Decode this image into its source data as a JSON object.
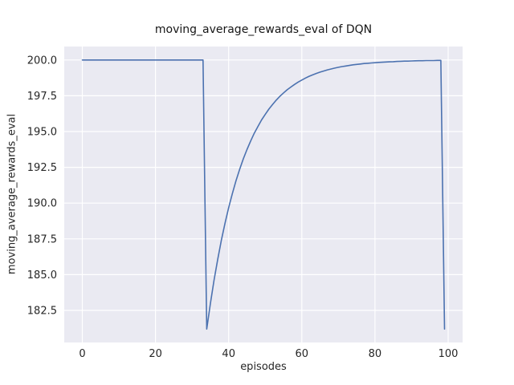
{
  "figure": {
    "title": "moving_average_rewards_eval of DQN",
    "xlabel": "episodes",
    "ylabel": "moving_average_rewards_eval"
  },
  "chart_data": {
    "type": "line",
    "title": "moving_average_rewards_eval of DQN",
    "xlabel": "episodes",
    "ylabel": "moving_average_rewards_eval",
    "xlim": [
      -4.95,
      103.95
    ],
    "ylim": [
      180.26,
      200.94
    ],
    "xticks": [
      0,
      20,
      40,
      60,
      80,
      100
    ],
    "xtick_labels": [
      "0",
      "20",
      "40",
      "60",
      "80",
      "100"
    ],
    "yticks": [
      182.5,
      185.0,
      187.5,
      190.0,
      192.5,
      195.0,
      197.5,
      200.0
    ],
    "ytick_labels": [
      "182.5",
      "185.0",
      "187.5",
      "190.0",
      "192.5",
      "195.0",
      "197.5",
      "200.0"
    ],
    "grid": true,
    "legend": null,
    "style": {
      "figure_bg": "#ffffff",
      "axes_bg": "#eaeaf2",
      "grid_color": "#ffffff",
      "line_color": "#4c72b0",
      "text_color": "#262626"
    },
    "series": [
      {
        "name": "DQN",
        "x": [
          0,
          1,
          2,
          3,
          4,
          5,
          6,
          7,
          8,
          9,
          10,
          11,
          12,
          13,
          14,
          15,
          16,
          17,
          18,
          19,
          20,
          21,
          22,
          23,
          24,
          25,
          26,
          27,
          28,
          29,
          30,
          31,
          32,
          33,
          34,
          35,
          36,
          37,
          38,
          39,
          40,
          41,
          42,
          43,
          44,
          45,
          46,
          47,
          48,
          49,
          50,
          51,
          52,
          53,
          54,
          55,
          56,
          57,
          58,
          59,
          60,
          61,
          62,
          63,
          64,
          65,
          66,
          67,
          68,
          69,
          70,
          71,
          72,
          73,
          74,
          75,
          76,
          77,
          78,
          79,
          80,
          81,
          82,
          83,
          84,
          85,
          86,
          87,
          88,
          89,
          90,
          91,
          92,
          93,
          94,
          95,
          96,
          97,
          98,
          99
        ],
        "y": [
          200.0,
          200.0,
          200.0,
          200.0,
          200.0,
          200.0,
          200.0,
          200.0,
          200.0,
          200.0,
          200.0,
          200.0,
          200.0,
          200.0,
          200.0,
          200.0,
          200.0,
          200.0,
          200.0,
          200.0,
          200.0,
          200.0,
          200.0,
          200.0,
          200.0,
          200.0,
          200.0,
          200.0,
          200.0,
          200.0,
          200.0,
          200.0,
          200.0,
          200.0,
          181.2,
          182.99,
          184.61,
          186.07,
          187.4,
          188.6,
          189.68,
          190.66,
          191.55,
          192.36,
          193.08,
          193.74,
          194.34,
          194.88,
          195.36,
          195.81,
          196.2,
          196.57,
          196.89,
          197.19,
          197.46,
          197.7,
          197.92,
          198.11,
          198.29,
          198.46,
          198.6,
          198.74,
          198.86,
          198.97,
          199.06,
          199.15,
          199.23,
          199.31,
          199.37,
          199.43,
          199.49,
          199.54,
          199.58,
          199.62,
          199.66,
          199.69,
          199.72,
          199.75,
          199.77,
          199.79,
          199.81,
          199.83,
          199.84,
          199.86,
          199.87,
          199.88,
          199.9,
          199.91,
          199.92,
          199.92,
          199.93,
          199.94,
          199.95,
          199.95,
          199.96,
          199.96,
          199.96,
          199.97,
          199.97,
          181.2
        ]
      }
    ]
  }
}
